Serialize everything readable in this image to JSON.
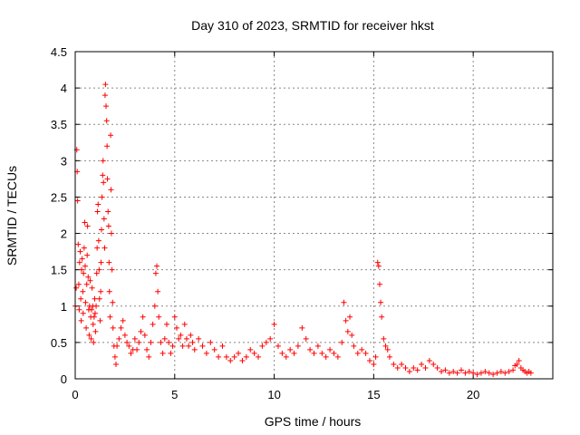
{
  "chart_data": {
    "type": "scatter",
    "title": "Day 310 of 2023, SRMTID for receiver hkst",
    "xlabel": "GPS time / hours",
    "ylabel": "SRMTID / TECUs",
    "xlim": [
      0,
      24
    ],
    "ylim": [
      0,
      4.5
    ],
    "x_ticks": [
      0,
      5,
      10,
      15,
      20
    ],
    "x_tick_labels": [
      "0",
      "5",
      "10",
      "15",
      "20"
    ],
    "y_ticks": [
      0,
      0.5,
      1,
      1.5,
      2,
      2.5,
      3,
      3.5,
      4,
      4.5
    ],
    "y_tick_labels": [
      "0",
      "0.5",
      "1",
      "1.5",
      "2",
      "2.5",
      "3",
      "3.5",
      "4",
      "4.5"
    ],
    "grid": true,
    "marker": "+",
    "series": [
      {
        "name": "SRMTID",
        "color": "#ff0000",
        "points": [
          [
            0.0,
            1.0
          ],
          [
            0.05,
            1.25
          ],
          [
            0.08,
            3.15
          ],
          [
            0.1,
            2.85
          ],
          [
            0.12,
            2.45
          ],
          [
            0.15,
            1.85
          ],
          [
            0.18,
            1.3
          ],
          [
            0.2,
            0.95
          ],
          [
            0.22,
            1.6
          ],
          [
            0.25,
            1.75
          ],
          [
            0.28,
            1.1
          ],
          [
            0.3,
            0.8
          ],
          [
            0.32,
            1.5
          ],
          [
            0.35,
            1.65
          ],
          [
            0.38,
            1.2
          ],
          [
            0.4,
            0.9
          ],
          [
            0.42,
            1.45
          ],
          [
            0.45,
            1.8
          ],
          [
            0.48,
            2.15
          ],
          [
            0.5,
            1.55
          ],
          [
            0.52,
            1.05
          ],
          [
            0.55,
            0.7
          ],
          [
            0.58,
            1.3
          ],
          [
            0.6,
            1.7
          ],
          [
            0.62,
            2.1
          ],
          [
            0.65,
            1.4
          ],
          [
            0.68,
            0.95
          ],
          [
            0.7,
            0.6
          ],
          [
            0.72,
            1.0
          ],
          [
            0.75,
            1.35
          ],
          [
            0.78,
            0.85
          ],
          [
            0.8,
            0.55
          ],
          [
            0.82,
            0.95
          ],
          [
            0.85,
            1.25
          ],
          [
            0.88,
            1.0
          ],
          [
            0.9,
            0.75
          ],
          [
            0.92,
            0.5
          ],
          [
            0.95,
            0.85
          ],
          [
            0.98,
            1.1
          ],
          [
            1.0,
            0.9
          ],
          [
            1.02,
            0.65
          ],
          [
            1.05,
            1.0
          ],
          [
            1.08,
            1.45
          ],
          [
            1.1,
            1.8
          ],
          [
            1.12,
            2.3
          ],
          [
            1.15,
            2.4
          ],
          [
            1.18,
            1.9
          ],
          [
            1.2,
            1.5
          ],
          [
            1.22,
            1.1
          ],
          [
            1.25,
            0.8
          ],
          [
            1.28,
            1.2
          ],
          [
            1.3,
            1.6
          ],
          [
            1.32,
            2.05
          ],
          [
            1.35,
            2.5
          ],
          [
            1.38,
            2.8
          ],
          [
            1.4,
            3.0
          ],
          [
            1.42,
            2.7
          ],
          [
            1.45,
            2.2
          ],
          [
            1.48,
            1.8
          ],
          [
            1.5,
            3.9
          ],
          [
            1.52,
            4.05
          ],
          [
            1.55,
            3.75
          ],
          [
            1.58,
            3.55
          ],
          [
            1.6,
            3.2
          ],
          [
            1.62,
            2.75
          ],
          [
            1.65,
            2.3
          ],
          [
            1.68,
            2.1
          ],
          [
            1.7,
            1.6
          ],
          [
            1.72,
            1.2
          ],
          [
            1.75,
            0.85
          ],
          [
            1.78,
            3.35
          ],
          [
            1.8,
            2.6
          ],
          [
            1.82,
            2.0
          ],
          [
            1.85,
            1.5
          ],
          [
            1.88,
            1.05
          ],
          [
            1.9,
            0.7
          ],
          [
            1.95,
            0.45
          ],
          [
            2.0,
            0.3
          ],
          [
            2.05,
            0.2
          ],
          [
            2.1,
            0.45
          ],
          [
            2.2,
            0.55
          ],
          [
            2.3,
            0.7
          ],
          [
            2.4,
            0.8
          ],
          [
            2.5,
            0.6
          ],
          [
            2.6,
            0.5
          ],
          [
            2.7,
            0.45
          ],
          [
            2.8,
            0.35
          ],
          [
            2.9,
            0.4
          ],
          [
            3.0,
            0.55
          ],
          [
            3.1,
            0.4
          ],
          [
            3.2,
            0.5
          ],
          [
            3.3,
            0.65
          ],
          [
            3.4,
            0.85
          ],
          [
            3.5,
            0.6
          ],
          [
            3.6,
            0.4
          ],
          [
            3.7,
            0.3
          ],
          [
            3.8,
            0.5
          ],
          [
            3.9,
            0.75
          ],
          [
            4.0,
            1.0
          ],
          [
            4.05,
            1.45
          ],
          [
            4.1,
            1.55
          ],
          [
            4.15,
            1.2
          ],
          [
            4.2,
            0.85
          ],
          [
            4.3,
            0.5
          ],
          [
            4.4,
            0.35
          ],
          [
            4.5,
            0.55
          ],
          [
            4.6,
            0.75
          ],
          [
            4.7,
            0.5
          ],
          [
            4.8,
            0.35
          ],
          [
            4.9,
            0.45
          ],
          [
            5.0,
            0.85
          ],
          [
            5.1,
            0.7
          ],
          [
            5.2,
            0.55
          ],
          [
            5.3,
            0.6
          ],
          [
            5.4,
            0.45
          ],
          [
            5.5,
            0.75
          ],
          [
            5.6,
            0.55
          ],
          [
            5.7,
            0.45
          ],
          [
            5.8,
            0.6
          ],
          [
            5.9,
            0.5
          ],
          [
            6.0,
            0.4
          ],
          [
            6.2,
            0.55
          ],
          [
            6.4,
            0.45
          ],
          [
            6.6,
            0.35
          ],
          [
            6.8,
            0.5
          ],
          [
            7.0,
            0.4
          ],
          [
            7.2,
            0.3
          ],
          [
            7.4,
            0.45
          ],
          [
            7.6,
            0.3
          ],
          [
            7.8,
            0.25
          ],
          [
            8.0,
            0.3
          ],
          [
            8.2,
            0.35
          ],
          [
            8.4,
            0.25
          ],
          [
            8.6,
            0.3
          ],
          [
            8.8,
            0.4
          ],
          [
            9.0,
            0.35
          ],
          [
            9.2,
            0.3
          ],
          [
            9.4,
            0.45
          ],
          [
            9.6,
            0.5
          ],
          [
            9.8,
            0.55
          ],
          [
            10.0,
            0.75
          ],
          [
            10.2,
            0.45
          ],
          [
            10.4,
            0.35
          ],
          [
            10.6,
            0.3
          ],
          [
            10.8,
            0.4
          ],
          [
            11.0,
            0.35
          ],
          [
            11.2,
            0.45
          ],
          [
            11.4,
            0.7
          ],
          [
            11.6,
            0.55
          ],
          [
            11.8,
            0.4
          ],
          [
            12.0,
            0.35
          ],
          [
            12.2,
            0.45
          ],
          [
            12.4,
            0.35
          ],
          [
            12.6,
            0.3
          ],
          [
            12.8,
            0.4
          ],
          [
            13.0,
            0.35
          ],
          [
            13.2,
            0.3
          ],
          [
            13.4,
            0.5
          ],
          [
            13.5,
            1.05
          ],
          [
            13.6,
            0.8
          ],
          [
            13.7,
            0.65
          ],
          [
            13.8,
            0.85
          ],
          [
            13.9,
            0.6
          ],
          [
            14.0,
            0.45
          ],
          [
            14.2,
            0.35
          ],
          [
            14.4,
            0.4
          ],
          [
            14.6,
            0.35
          ],
          [
            14.8,
            0.25
          ],
          [
            15.0,
            0.2
          ],
          [
            15.1,
            0.3
          ],
          [
            15.2,
            1.6
          ],
          [
            15.25,
            1.55
          ],
          [
            15.3,
            1.3
          ],
          [
            15.35,
            1.05
          ],
          [
            15.4,
            0.85
          ],
          [
            15.5,
            0.55
          ],
          [
            15.6,
            0.45
          ],
          [
            15.7,
            0.4
          ],
          [
            15.8,
            0.3
          ],
          [
            16.0,
            0.2
          ],
          [
            16.2,
            0.15
          ],
          [
            16.4,
            0.2
          ],
          [
            16.6,
            0.15
          ],
          [
            16.8,
            0.1
          ],
          [
            17.0,
            0.15
          ],
          [
            17.2,
            0.12
          ],
          [
            17.4,
            0.2
          ],
          [
            17.6,
            0.15
          ],
          [
            17.8,
            0.25
          ],
          [
            18.0,
            0.2
          ],
          [
            18.2,
            0.15
          ],
          [
            18.4,
            0.1
          ],
          [
            18.6,
            0.12
          ],
          [
            18.8,
            0.08
          ],
          [
            19.0,
            0.1
          ],
          [
            19.2,
            0.08
          ],
          [
            19.4,
            0.12
          ],
          [
            19.6,
            0.08
          ],
          [
            19.8,
            0.1
          ],
          [
            20.0,
            0.08
          ],
          [
            20.2,
            0.06
          ],
          [
            20.4,
            0.08
          ],
          [
            20.6,
            0.1
          ],
          [
            20.8,
            0.08
          ],
          [
            21.0,
            0.06
          ],
          [
            21.2,
            0.08
          ],
          [
            21.4,
            0.1
          ],
          [
            21.6,
            0.08
          ],
          [
            21.8,
            0.1
          ],
          [
            22.0,
            0.12
          ],
          [
            22.1,
            0.18
          ],
          [
            22.2,
            0.2
          ],
          [
            22.3,
            0.25
          ],
          [
            22.4,
            0.15
          ],
          [
            22.5,
            0.12
          ],
          [
            22.6,
            0.1
          ],
          [
            22.7,
            0.08
          ],
          [
            22.8,
            0.1
          ],
          [
            22.9,
            0.08
          ]
        ]
      }
    ]
  }
}
